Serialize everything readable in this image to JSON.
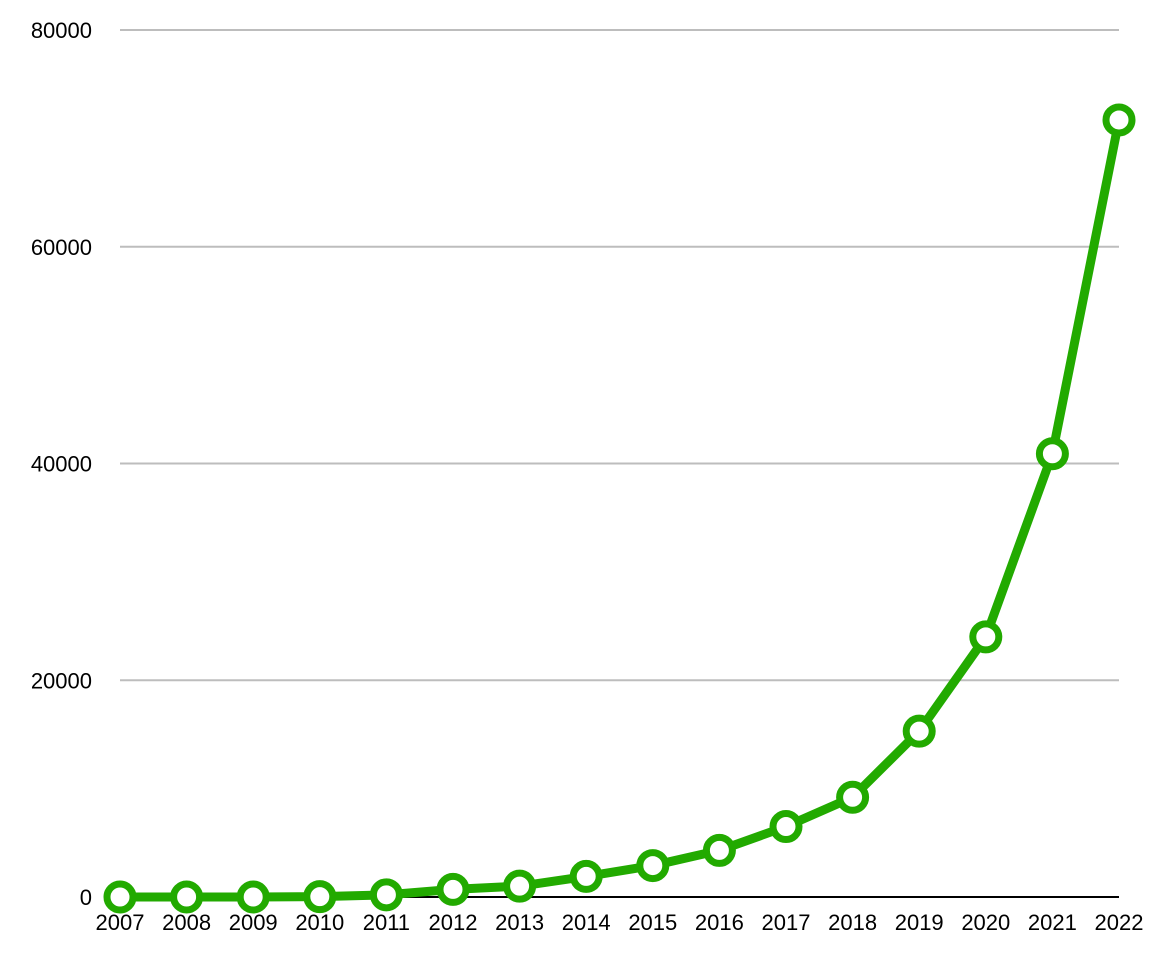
{
  "chart_data": {
    "type": "line",
    "title": "",
    "xlabel": "",
    "ylabel": "",
    "x": [
      "2007",
      "2008",
      "2009",
      "2010",
      "2011",
      "2012",
      "2013",
      "2014",
      "2015",
      "2016",
      "2017",
      "2018",
      "2019",
      "2020",
      "2021",
      "2022"
    ],
    "series": [
      {
        "values": [
          0,
          0,
          0,
          30,
          200,
          700,
          1000,
          1900,
          2900,
          4300,
          6500,
          9200,
          15300,
          24000,
          40900,
          71700
        ]
      }
    ],
    "ylim": [
      0,
      80000
    ],
    "y_ticks": [
      "0",
      "20000",
      "40000",
      "60000",
      "80000"
    ],
    "grid": true,
    "legend": "none",
    "line_color": "#22aa00",
    "point_fill": "#ffffff"
  }
}
